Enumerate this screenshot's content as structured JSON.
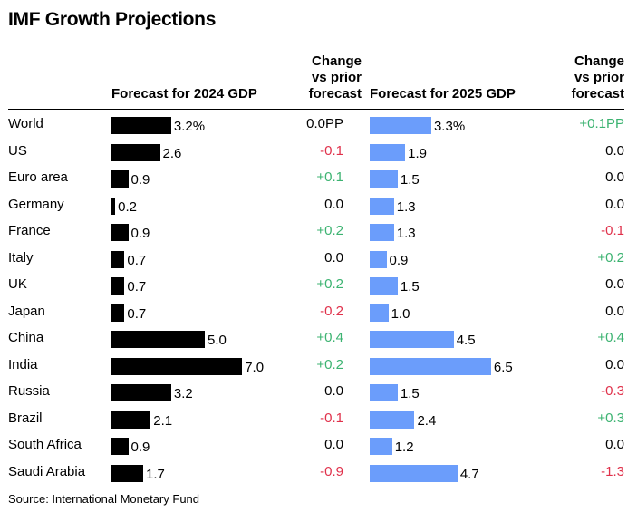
{
  "title": "IMF Growth Projections",
  "source": "Source: International Monetary Fund",
  "headers": {
    "forecast_2024": "Forecast for 2024 GDP",
    "change_2024": [
      "Change",
      "vs prior",
      "forecast"
    ],
    "forecast_2025": "Forecast for 2025 GDP",
    "change_2025": [
      "Change",
      "vs prior",
      "forecast"
    ]
  },
  "colors": {
    "bar_2024": "#000000",
    "bar_2025": "#6b9dfb",
    "positive": "#3cb371",
    "negative": "#e0314b",
    "neutral": "#000000"
  },
  "chart_data": {
    "type": "bar",
    "orientation": "horizontal",
    "categories": [
      "World",
      "US",
      "Euro area",
      "Germany",
      "France",
      "Italy",
      "UK",
      "Japan",
      "China",
      "India",
      "Russia",
      "Brazil",
      "South Africa",
      "Saudi Arabia"
    ],
    "series": [
      {
        "name": "Forecast for 2024 GDP",
        "values": [
          3.2,
          2.6,
          0.9,
          0.2,
          0.9,
          0.7,
          0.7,
          0.7,
          5.0,
          7.0,
          3.2,
          2.1,
          0.9,
          1.7
        ],
        "labels": [
          "3.2%",
          "2.6",
          "0.9",
          "0.2",
          "0.9",
          "0.7",
          "0.7",
          "0.7",
          "5.0",
          "7.0",
          "3.2",
          "2.1",
          "0.9",
          "1.7"
        ],
        "change_labels": [
          "0.0PP",
          "-0.1",
          "+0.1",
          "0.0",
          "+0.2",
          "0.0",
          "+0.2",
          "-0.2",
          "+0.4",
          "+0.2",
          "0.0",
          "-0.1",
          "0.0",
          "-0.9"
        ]
      },
      {
        "name": "Forecast for 2025 GDP",
        "values": [
          3.3,
          1.9,
          1.5,
          1.3,
          1.3,
          0.9,
          1.5,
          1.0,
          4.5,
          6.5,
          1.5,
          2.4,
          1.2,
          4.7
        ],
        "labels": [
          "3.3%",
          "1.9",
          "1.5",
          "1.3",
          "1.3",
          "0.9",
          "1.5",
          "1.0",
          "4.5",
          "6.5",
          "1.5",
          "2.4",
          "1.2",
          "4.7"
        ],
        "change_labels": [
          "+0.1PP",
          "0.0",
          "0.0",
          "0.0",
          "-0.1",
          "+0.2",
          "0.0",
          "0.0",
          "+0.4",
          "0.0",
          "-0.3",
          "+0.3",
          "0.0",
          "-1.3"
        ]
      }
    ]
  }
}
